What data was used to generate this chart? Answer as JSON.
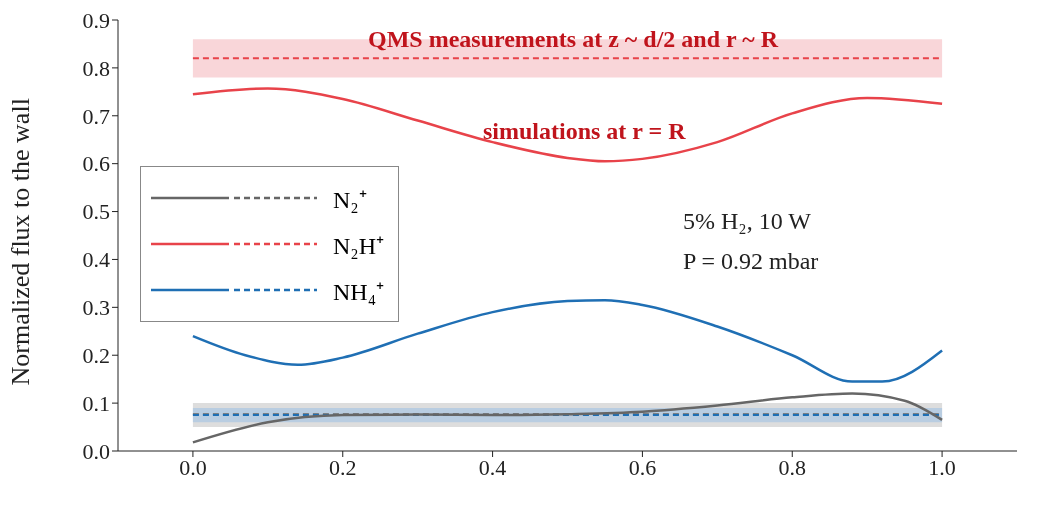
{
  "chart_data": {
    "type": "line",
    "ylabel": "Normalized flux to the wall",
    "xlim": [
      -0.1,
      1.1
    ],
    "xticks": [
      {
        "value": 0,
        "label": "0.0"
      },
      0.2,
      0.4,
      0.6,
      0.8,
      {
        "value": 1,
        "label": "1.0"
      }
    ],
    "ylim": [
      0,
      0.9
    ],
    "yticks": [
      {
        "value": 0,
        "label": "0.0"
      },
      0.1,
      0.2,
      0.3,
      0.4,
      0.5,
      0.6,
      0.7,
      0.8,
      0.9
    ],
    "grid": false,
    "legend": "left",
    "marker": "none",
    "line_style": "solid",
    "series": [
      {
        "name": "N₂⁺",
        "color": "#666666",
        "x": [
          0,
          0.1,
          0.2,
          0.3,
          0.4,
          0.5,
          0.6,
          0.7,
          0.8,
          0.88,
          0.95,
          1.0
        ],
        "values": [
          0.018,
          0.06,
          0.075,
          0.076,
          0.075,
          0.077,
          0.082,
          0.095,
          0.112,
          0.12,
          0.105,
          0.065
        ]
      },
      {
        "name": "N₂H⁺",
        "color": "#e8434a",
        "x": [
          0,
          0.1,
          0.2,
          0.3,
          0.4,
          0.5,
          0.55,
          0.6,
          0.7,
          0.8,
          0.9,
          1.0
        ],
        "values": [
          0.745,
          0.757,
          0.735,
          0.69,
          0.645,
          0.612,
          0.605,
          0.61,
          0.645,
          0.705,
          0.737,
          0.725
        ]
      },
      {
        "name": "NH₄⁺",
        "color": "#1f6fb4",
        "x": [
          0,
          0.07,
          0.14,
          0.2,
          0.3,
          0.4,
          0.5,
          0.55,
          0.6,
          0.7,
          0.8,
          0.88,
          0.92,
          1.0
        ],
        "values": [
          0.24,
          0.2,
          0.18,
          0.195,
          0.245,
          0.29,
          0.313,
          0.315,
          0.305,
          0.26,
          0.2,
          0.145,
          0.145,
          0.21
        ]
      }
    ],
    "bands": [
      {
        "axis": "y",
        "from": 0.78,
        "to": 0.86,
        "color": "#f7c5c9"
      },
      {
        "axis": "y",
        "from": 0.05,
        "to": 0.1,
        "color": "#cfcfcf"
      },
      {
        "axis": "y",
        "from": 0.06,
        "to": 0.09,
        "color": "#a9c6e3"
      }
    ],
    "ref_lines": [
      {
        "axis": "y",
        "value": 0.077,
        "color": "#666666",
        "line_style": "dashed"
      },
      {
        "axis": "y",
        "value": 0.82,
        "color": "#e8434a",
        "line_style": "dashed"
      },
      {
        "axis": "y",
        "value": 0.075,
        "color": "#1f6fb4",
        "line_style": "dashed"
      }
    ],
    "annotations": [
      "QMS measurements at z ~ d/2 and r ~ R",
      "simulations at r = R",
      "5% H₂, 10 W",
      "P = 0.92 mbar"
    ]
  }
}
